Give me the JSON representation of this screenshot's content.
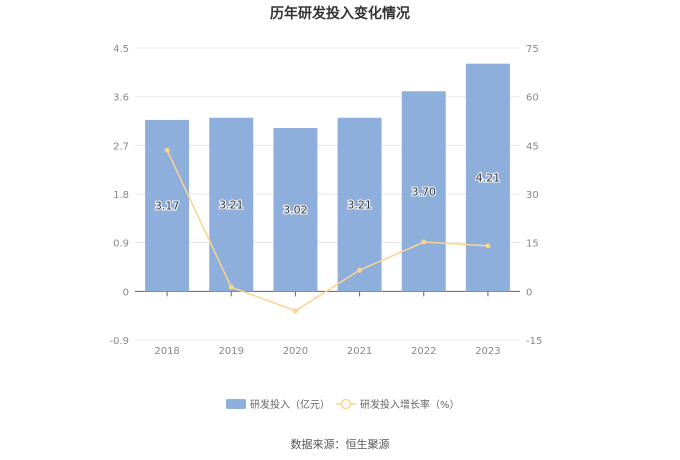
{
  "title": "历年研发投入变化情况",
  "source": "数据来源：恒生聚源",
  "chart_data": {
    "type": "bar",
    "categories": [
      "2018",
      "2019",
      "2020",
      "2021",
      "2022",
      "2023"
    ],
    "series": [
      {
        "name": "研发投入（亿元）",
        "type": "bar",
        "axis": "left",
        "values": [
          3.17,
          3.21,
          3.02,
          3.21,
          3.7,
          4.21
        ],
        "labels": [
          "3.17",
          "3.21",
          "3.02",
          "3.21",
          "3.70",
          "4.21"
        ],
        "color": "#8eaedb"
      },
      {
        "name": "研发投入增长率（%）",
        "type": "line",
        "axis": "right",
        "values": [
          43.5,
          1.3,
          -6.0,
          6.5,
          15.2,
          14.0
        ],
        "color": "#fcd38f"
      }
    ],
    "y_left": {
      "min": -0.9,
      "max": 4.5,
      "ticks": [
        "-0.9",
        "0",
        "0.9",
        "1.8",
        "2.7",
        "3.6",
        "4.5"
      ]
    },
    "y_right": {
      "min": -15,
      "max": 75,
      "ticks": [
        "-15",
        "0",
        "15",
        "30",
        "45",
        "60",
        "75"
      ]
    },
    "grid": true,
    "legend_position": "bottom"
  }
}
